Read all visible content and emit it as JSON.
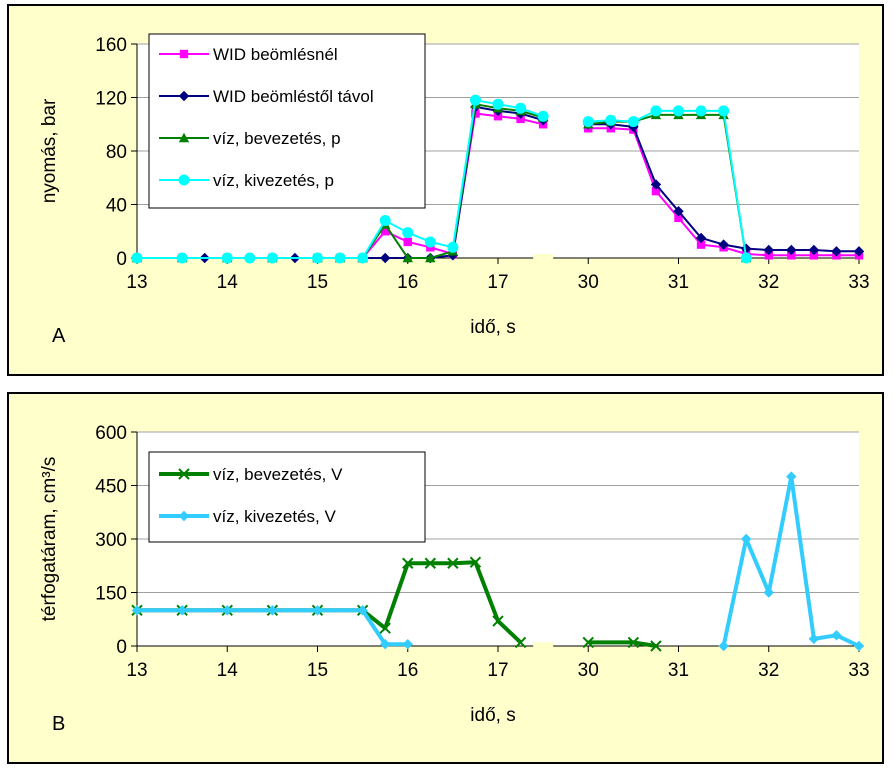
{
  "chart_data": [
    {
      "type": "line",
      "panel_label": "A",
      "xlabel": "idő, s",
      "ylabel": "nyomás, bar",
      "ylim": [
        0,
        160
      ],
      "yticks": [
        0,
        40,
        80,
        120,
        160
      ],
      "x_tick_labels": [
        "13",
        "14",
        "15",
        "16",
        "17",
        "30",
        "31",
        "32",
        "33"
      ],
      "x_axis_break": "between 17 and 30",
      "grid": "horizontal",
      "legend": "top-left",
      "series": [
        {
          "name": "WID beömlésnél",
          "color": "#ff00ff",
          "marker": "square",
          "points": [
            [
              13.0,
              0
            ],
            [
              13.5,
              0
            ],
            [
              14.0,
              0
            ],
            [
              14.5,
              0
            ],
            [
              15.0,
              0
            ],
            [
              15.25,
              0
            ],
            [
              15.5,
              0
            ],
            [
              15.75,
              20
            ],
            [
              16.0,
              12
            ],
            [
              16.25,
              8
            ],
            [
              16.5,
              3
            ],
            [
              16.75,
              108
            ],
            [
              17.0,
              106
            ],
            [
              17.25,
              104
            ],
            [
              17.5,
              100
            ],
            [
              30.0,
              97
            ],
            [
              30.25,
              97
            ],
            [
              30.5,
              96
            ],
            [
              30.75,
              50
            ],
            [
              31.0,
              30
            ],
            [
              31.25,
              10
            ],
            [
              31.5,
              8
            ],
            [
              31.75,
              3
            ],
            [
              32.0,
              2
            ],
            [
              32.25,
              2
            ],
            [
              32.5,
              2
            ],
            [
              32.75,
              2
            ],
            [
              33.0,
              2
            ]
          ]
        },
        {
          "name": "WID beömléstől távol",
          "color": "#000080",
          "marker": "diamond",
          "points": [
            [
              13.0,
              0
            ],
            [
              13.5,
              0
            ],
            [
              13.75,
              0
            ],
            [
              14.0,
              0
            ],
            [
              14.25,
              0
            ],
            [
              14.5,
              0
            ],
            [
              14.75,
              0
            ],
            [
              15.0,
              0
            ],
            [
              15.25,
              0
            ],
            [
              15.5,
              0
            ],
            [
              15.75,
              0
            ],
            [
              16.0,
              0
            ],
            [
              16.25,
              0
            ],
            [
              16.5,
              2
            ],
            [
              16.75,
              113
            ],
            [
              17.0,
              110
            ],
            [
              17.25,
              108
            ],
            [
              17.5,
              103
            ],
            [
              30.0,
              100
            ],
            [
              30.25,
              100
            ],
            [
              30.5,
              98
            ],
            [
              30.75,
              55
            ],
            [
              31.0,
              35
            ],
            [
              31.25,
              15
            ],
            [
              31.5,
              10
            ],
            [
              31.75,
              7
            ],
            [
              32.0,
              6
            ],
            [
              32.25,
              6
            ],
            [
              32.5,
              6
            ],
            [
              32.75,
              5
            ],
            [
              33.0,
              5
            ]
          ]
        },
        {
          "name": "víz, bevezetés, p",
          "color": "#008000",
          "marker": "triangle",
          "points": [
            [
              13.0,
              0
            ],
            [
              13.5,
              0
            ],
            [
              14.0,
              0
            ],
            [
              14.5,
              0
            ],
            [
              15.0,
              0
            ],
            [
              15.25,
              0
            ],
            [
              15.5,
              0
            ],
            [
              15.75,
              25
            ],
            [
              16.0,
              0
            ],
            [
              16.25,
              0
            ],
            [
              16.5,
              5
            ],
            [
              16.75,
              115
            ],
            [
              17.0,
              112
            ],
            [
              17.25,
              110
            ],
            [
              17.5,
              105
            ],
            [
              30.0,
              100
            ],
            [
              30.25,
              102
            ],
            [
              30.5,
              102
            ],
            [
              30.75,
              107
            ],
            [
              31.0,
              107
            ],
            [
              31.25,
              107
            ],
            [
              31.5,
              107
            ],
            [
              31.75,
              0
            ]
          ]
        },
        {
          "name": "víz, kivezetés, p",
          "color": "#00ffff",
          "marker": "circle",
          "points": [
            [
              13.0,
              0
            ],
            [
              13.5,
              0
            ],
            [
              14.0,
              0
            ],
            [
              14.25,
              0
            ],
            [
              14.5,
              0
            ],
            [
              15.0,
              0
            ],
            [
              15.25,
              0
            ],
            [
              15.5,
              0
            ],
            [
              15.75,
              28
            ],
            [
              16.0,
              19
            ],
            [
              16.25,
              12
            ],
            [
              16.5,
              8
            ],
            [
              16.75,
              118
            ],
            [
              17.0,
              115
            ],
            [
              17.25,
              112
            ],
            [
              17.5,
              106
            ],
            [
              30.0,
              102
            ],
            [
              30.25,
              103
            ],
            [
              30.5,
              102
            ],
            [
              30.75,
              110
            ],
            [
              31.0,
              110
            ],
            [
              31.25,
              110
            ],
            [
              31.5,
              110
            ],
            [
              31.75,
              0
            ]
          ]
        }
      ]
    },
    {
      "type": "line",
      "panel_label": "B",
      "xlabel": "idő, s",
      "ylabel": "térfogatáram, cm³/s",
      "ylim": [
        0,
        600
      ],
      "yticks": [
        0,
        150,
        300,
        450,
        600
      ],
      "x_tick_labels": [
        "13",
        "14",
        "15",
        "16",
        "17",
        "30",
        "31",
        "32",
        "33"
      ],
      "x_axis_break": "between 17 and 30",
      "grid": "horizontal",
      "legend": "top-left",
      "series": [
        {
          "name": "víz, bevezetés, V",
          "color": "#008000",
          "marker": "x",
          "points": [
            [
              13.0,
              100
            ],
            [
              13.5,
              100
            ],
            [
              14.0,
              100
            ],
            [
              14.5,
              100
            ],
            [
              15.0,
              100
            ],
            [
              15.5,
              100
            ],
            [
              15.75,
              50
            ],
            [
              16.0,
              232
            ],
            [
              16.25,
              232
            ],
            [
              16.5,
              232
            ],
            [
              16.75,
              235
            ],
            [
              17.0,
              70
            ],
            [
              17.25,
              10
            ],
            [
              30.0,
              10
            ],
            [
              30.5,
              10
            ],
            [
              30.75,
              0
            ]
          ]
        },
        {
          "name": "víz, kivezetés, V",
          "color": "#33ccff",
          "marker": "diamond",
          "points": [
            [
              13.0,
              100
            ],
            [
              13.5,
              100
            ],
            [
              14.0,
              100
            ],
            [
              14.5,
              100
            ],
            [
              15.0,
              100
            ],
            [
              15.5,
              100
            ],
            [
              15.75,
              5
            ],
            [
              16.0,
              5
            ],
            [
              31.5,
              0
            ],
            [
              31.75,
              300
            ],
            [
              32.0,
              150
            ],
            [
              32.25,
              475
            ],
            [
              32.5,
              20
            ],
            [
              32.75,
              30
            ],
            [
              33.0,
              0
            ]
          ]
        }
      ]
    }
  ]
}
